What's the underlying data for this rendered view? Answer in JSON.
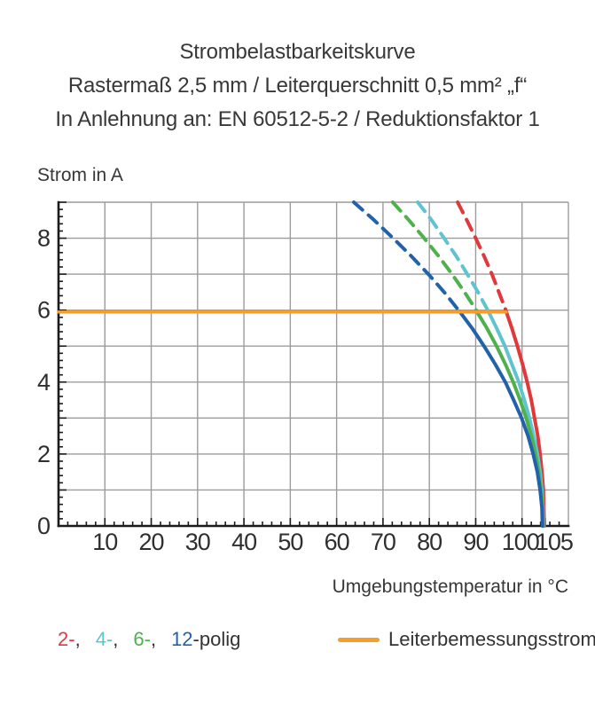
{
  "title": {
    "line1": "Strombelastbarkeitskurve",
    "line2": "Rastermaß 2,5 mm / Leiterquerschnitt 0,5 mm² „f“",
    "line3": "In Anlehnung an: EN 60512-5-2 / Reduktionsfaktor 1"
  },
  "colors": {
    "background": "#ffffff",
    "grid": "#9c9c9e",
    "axis": "#1c1c1c",
    "tick_text": "#2f2f2f",
    "accent_orange": "#f59e2e"
  },
  "chart_data": {
    "type": "line",
    "title": "Strombelastbarkeitskurve – Rastermaß 2,5 mm / Leiterquerschnitt 0,5 mm² „f“ – In Anlehnung an: EN 60512-5-2 / Reduktionsfaktor 1",
    "xlabel": "Umgebungstemperatur in °C",
    "ylabel": "Strom in A",
    "xlim": [
      0,
      110
    ],
    "ylim": [
      0,
      9
    ],
    "grid": true,
    "x_major_ticks": [
      10,
      20,
      30,
      40,
      50,
      60,
      70,
      80,
      90,
      100,
      105
    ],
    "y_tick_labels": [
      0,
      2,
      4,
      6,
      8
    ],
    "y_major_step": 1,
    "x_minor_step": 2,
    "y_minor_step": 0.2,
    "legend_position": "bottom",
    "style_note": "curves dashed above rated current line, solid below",
    "rated_current_line": {
      "name": "Leiterbemessungsstrom",
      "value": 5.95,
      "x_start": 0,
      "x_end": 96.6,
      "color": "#f59e2e"
    },
    "series": [
      {
        "name": "2-polig",
        "color": "#e0393b",
        "points_dashed": [
          [
            86.1,
            9
          ],
          [
            88.1,
            8.5
          ],
          [
            90.0,
            8
          ],
          [
            91.8,
            7.5
          ],
          [
            93.5,
            7
          ],
          [
            95.0,
            6.5
          ],
          [
            96.5,
            6
          ],
          [
            96.6,
            5.95
          ]
        ],
        "points_solid": [
          [
            96.6,
            5.95
          ],
          [
            97.8,
            5.5
          ],
          [
            99.0,
            5
          ],
          [
            100.1,
            4.5
          ],
          [
            101.1,
            4
          ],
          [
            102.0,
            3.5
          ],
          [
            102.7,
            3
          ],
          [
            103.4,
            2.5
          ],
          [
            103.9,
            2
          ],
          [
            104.3,
            1.5
          ],
          [
            104.6,
            1
          ],
          [
            104.7,
            0.5
          ],
          [
            104.8,
            0
          ]
        ]
      },
      {
        "name": "4-polig",
        "color": "#5fc3d2",
        "points_dashed": [
          [
            77.5,
            9
          ],
          [
            80.5,
            8.5
          ],
          [
            83.2,
            8
          ],
          [
            85.8,
            7.5
          ],
          [
            88.2,
            7
          ],
          [
            90.5,
            6.5
          ],
          [
            92.6,
            6
          ],
          [
            92.8,
            5.95
          ]
        ],
        "points_solid": [
          [
            92.8,
            5.95
          ],
          [
            94.5,
            5.5
          ],
          [
            96.3,
            5
          ],
          [
            97.8,
            4.5
          ],
          [
            99.3,
            4
          ],
          [
            100.5,
            3.5
          ],
          [
            101.6,
            3
          ],
          [
            102.5,
            2.5
          ],
          [
            103.3,
            2
          ],
          [
            103.9,
            1.5
          ],
          [
            104.3,
            1
          ],
          [
            104.5,
            0.5
          ],
          [
            104.6,
            0
          ]
        ]
      },
      {
        "name": "6-polig",
        "color": "#4eb14b",
        "points_dashed": [
          [
            72.1,
            9
          ],
          [
            75.6,
            8.5
          ],
          [
            78.9,
            8
          ],
          [
            82.0,
            7.5
          ],
          [
            84.9,
            7
          ],
          [
            87.6,
            6.5
          ],
          [
            90.1,
            6
          ],
          [
            90.3,
            5.95
          ]
        ],
        "points_solid": [
          [
            90.3,
            5.95
          ],
          [
            92.4,
            5.5
          ],
          [
            94.5,
            5
          ],
          [
            96.4,
            4.5
          ],
          [
            98.1,
            4
          ],
          [
            99.6,
            3.5
          ],
          [
            100.9,
            3
          ],
          [
            102.0,
            2.5
          ],
          [
            102.9,
            2
          ],
          [
            103.6,
            1.5
          ],
          [
            104.1,
            1
          ],
          [
            104.4,
            0.5
          ],
          [
            104.5,
            0
          ]
        ]
      },
      {
        "name": "12-polig",
        "color": "#2262ab",
        "points_dashed": [
          [
            63.7,
            9
          ],
          [
            68.1,
            8.5
          ],
          [
            72.2,
            8
          ],
          [
            76.1,
            7.5
          ],
          [
            79.8,
            7
          ],
          [
            83.2,
            6.5
          ],
          [
            86.3,
            6
          ],
          [
            86.6,
            5.95
          ]
        ],
        "points_solid": [
          [
            86.6,
            5.95
          ],
          [
            89.2,
            5.5
          ],
          [
            91.8,
            5
          ],
          [
            94.2,
            4.5
          ],
          [
            96.4,
            4
          ],
          [
            98.2,
            3.5
          ],
          [
            99.9,
            3
          ],
          [
            101.3,
            2.5
          ],
          [
            102.4,
            2
          ],
          [
            103.3,
            1.5
          ],
          [
            103.9,
            1
          ],
          [
            104.3,
            0.5
          ],
          [
            104.4,
            0
          ]
        ]
      }
    ]
  },
  "legend": {
    "poles": [
      {
        "label": "2-",
        "color": "#e0393b",
        "trail": ","
      },
      {
        "label": "4-",
        "color": "#5fc3d2",
        "trail": ","
      },
      {
        "label": "6-",
        "color": "#4eb14b",
        "trail": ","
      },
      {
        "label": "12",
        "color": "#2262ab",
        "trail": "-polig"
      }
    ],
    "rated": {
      "label": "Leiterbemessungsstrom",
      "color": "#f59e2e"
    }
  }
}
